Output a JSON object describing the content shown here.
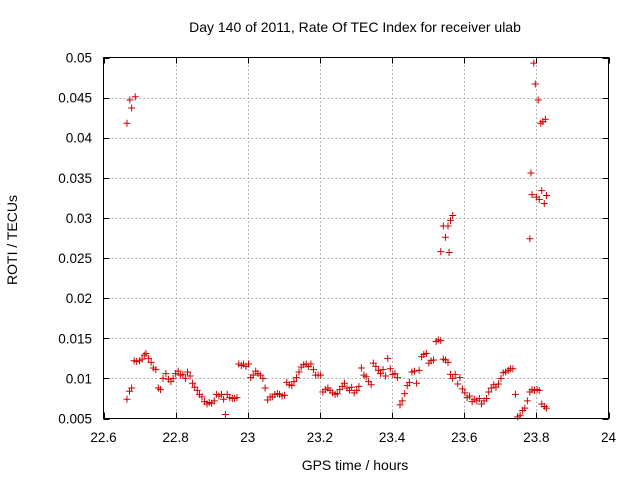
{
  "chart_data": {
    "type": "scatter",
    "title": "Day 140 of 2011, Rate Of TEC Index for receiver ulab",
    "xlabel": "GPS time / hours",
    "ylabel": "ROTI / TECUs",
    "xlim": [
      22.6,
      24.0
    ],
    "ylim": [
      0.005,
      0.05
    ],
    "grid": true,
    "marker": "+",
    "color": "#cc0000",
    "x_ticks": [
      22.6,
      22.8,
      23.0,
      23.2,
      23.4,
      23.6,
      23.8,
      24.0
    ],
    "x_tick_labels": [
      "22.6",
      "22.8",
      "23",
      "23.2",
      "23.4",
      "23.6",
      "23.8",
      "24"
    ],
    "y_ticks": [
      0.005,
      0.01,
      0.015,
      0.02,
      0.025,
      0.03,
      0.035,
      0.04,
      0.045,
      0.05
    ],
    "y_tick_labels": [
      "0.005",
      "0.01",
      "0.015",
      "0.02",
      "0.025",
      "0.03",
      "0.035",
      "0.04",
      "0.045",
      "0.05"
    ],
    "points": [
      [
        22.665,
        0.0418
      ],
      [
        22.673,
        0.0447
      ],
      [
        22.678,
        0.0437
      ],
      [
        22.688,
        0.0451
      ],
      [
        22.665,
        0.0074
      ],
      [
        22.672,
        0.0084
      ],
      [
        22.678,
        0.0088
      ],
      [
        22.685,
        0.0122
      ],
      [
        22.692,
        0.0121
      ],
      [
        22.7,
        0.0122
      ],
      [
        22.707,
        0.0124
      ],
      [
        22.713,
        0.0129
      ],
      [
        22.718,
        0.0131
      ],
      [
        22.725,
        0.0125
      ],
      [
        22.732,
        0.012
      ],
      [
        22.738,
        0.0113
      ],
      [
        22.745,
        0.0111
      ],
      [
        22.752,
        0.0088
      ],
      [
        22.758,
        0.0086
      ],
      [
        22.765,
        0.01
      ],
      [
        22.773,
        0.0106
      ],
      [
        22.78,
        0.0099
      ],
      [
        22.787,
        0.0096
      ],
      [
        22.793,
        0.01
      ],
      [
        22.8,
        0.0106
      ],
      [
        22.807,
        0.0109
      ],
      [
        22.813,
        0.0104
      ],
      [
        22.82,
        0.0105
      ],
      [
        22.827,
        0.01
      ],
      [
        22.833,
        0.0108
      ],
      [
        22.84,
        0.0103
      ],
      [
        22.847,
        0.0094
      ],
      [
        22.853,
        0.0089
      ],
      [
        22.86,
        0.0085
      ],
      [
        22.866,
        0.008
      ],
      [
        22.873,
        0.0077
      ],
      [
        22.88,
        0.0071
      ],
      [
        22.887,
        0.0068
      ],
      [
        22.893,
        0.007
      ],
      [
        22.9,
        0.0069
      ],
      [
        22.907,
        0.0072
      ],
      [
        22.913,
        0.008
      ],
      [
        22.92,
        0.0078
      ],
      [
        22.927,
        0.008
      ],
      [
        22.933,
        0.0074
      ],
      [
        22.938,
        0.0055
      ],
      [
        22.943,
        0.008
      ],
      [
        22.95,
        0.0076
      ],
      [
        22.957,
        0.0075
      ],
      [
        22.963,
        0.0075
      ],
      [
        22.97,
        0.0076
      ],
      [
        22.975,
        0.0118
      ],
      [
        22.982,
        0.0116
      ],
      [
        22.988,
        0.0118
      ],
      [
        22.995,
        0.0115
      ],
      [
        23.002,
        0.0118
      ],
      [
        23.008,
        0.0101
      ],
      [
        23.015,
        0.0104
      ],
      [
        23.022,
        0.0109
      ],
      [
        23.028,
        0.0106
      ],
      [
        23.035,
        0.0104
      ],
      [
        23.042,
        0.01
      ],
      [
        23.048,
        0.0088
      ],
      [
        23.055,
        0.0073
      ],
      [
        23.062,
        0.0077
      ],
      [
        23.068,
        0.0077
      ],
      [
        23.075,
        0.008
      ],
      [
        23.082,
        0.0081
      ],
      [
        23.088,
        0.008
      ],
      [
        23.095,
        0.0078
      ],
      [
        23.102,
        0.0079
      ],
      [
        23.108,
        0.0095
      ],
      [
        23.115,
        0.0092
      ],
      [
        23.122,
        0.0091
      ],
      [
        23.128,
        0.0096
      ],
      [
        23.135,
        0.0101
      ],
      [
        23.142,
        0.0108
      ],
      [
        23.148,
        0.0114
      ],
      [
        23.155,
        0.0117
      ],
      [
        23.162,
        0.0118
      ],
      [
        23.168,
        0.0115
      ],
      [
        23.175,
        0.0118
      ],
      [
        23.182,
        0.0111
      ],
      [
        23.188,
        0.0104
      ],
      [
        23.195,
        0.0104
      ],
      [
        23.202,
        0.0104
      ],
      [
        23.208,
        0.0083
      ],
      [
        23.215,
        0.0086
      ],
      [
        23.222,
        0.0088
      ],
      [
        23.228,
        0.0085
      ],
      [
        23.235,
        0.0082
      ],
      [
        23.242,
        0.008
      ],
      [
        23.248,
        0.0081
      ],
      [
        23.255,
        0.0086
      ],
      [
        23.262,
        0.009
      ],
      [
        23.268,
        0.0094
      ],
      [
        23.275,
        0.0088
      ],
      [
        23.282,
        0.0085
      ],
      [
        23.288,
        0.0089
      ],
      [
        23.295,
        0.0082
      ],
      [
        23.302,
        0.0085
      ],
      [
        23.308,
        0.009
      ],
      [
        23.315,
        0.0113
      ],
      [
        23.322,
        0.0104
      ],
      [
        23.328,
        0.0102
      ],
      [
        23.335,
        0.0096
      ],
      [
        23.342,
        0.0092
      ],
      [
        23.348,
        0.0119
      ],
      [
        23.355,
        0.0115
      ],
      [
        23.362,
        0.011
      ],
      [
        23.368,
        0.0106
      ],
      [
        23.375,
        0.0111
      ],
      [
        23.382,
        0.0103
      ],
      [
        23.388,
        0.0125
      ],
      [
        23.395,
        0.0112
      ],
      [
        23.402,
        0.0105
      ],
      [
        23.408,
        0.0106
      ],
      [
        23.415,
        0.0101
      ],
      [
        23.422,
        0.0067
      ],
      [
        23.428,
        0.0072
      ],
      [
        23.435,
        0.0081
      ],
      [
        23.442,
        0.0091
      ],
      [
        23.448,
        0.0095
      ],
      [
        23.455,
        0.0108
      ],
      [
        23.462,
        0.0109
      ],
      [
        23.468,
        0.0094
      ],
      [
        23.475,
        0.011
      ],
      [
        23.482,
        0.0127
      ],
      [
        23.488,
        0.013
      ],
      [
        23.495,
        0.0131
      ],
      [
        23.502,
        0.0119
      ],
      [
        23.508,
        0.0122
      ],
      [
        23.515,
        0.0123
      ],
      [
        23.522,
        0.0146
      ],
      [
        23.528,
        0.0148
      ],
      [
        23.535,
        0.0147
      ],
      [
        23.542,
        0.0124
      ],
      [
        23.548,
        0.0123
      ],
      [
        23.555,
        0.012
      ],
      [
        23.562,
        0.0105
      ],
      [
        23.568,
        0.01
      ],
      [
        23.575,
        0.0105
      ],
      [
        23.582,
        0.0093
      ],
      [
        23.588,
        0.0101
      ],
      [
        23.595,
        0.0087
      ],
      [
        23.602,
        0.0082
      ],
      [
        23.608,
        0.0076
      ],
      [
        23.615,
        0.0078
      ],
      [
        23.622,
        0.0071
      ],
      [
        23.628,
        0.0074
      ],
      [
        23.635,
        0.0072
      ],
      [
        23.642,
        0.0075
      ],
      [
        23.648,
        0.0068
      ],
      [
        23.655,
        0.0072
      ],
      [
        23.662,
        0.0075
      ],
      [
        23.668,
        0.0083
      ],
      [
        23.675,
        0.0088
      ],
      [
        23.682,
        0.0092
      ],
      [
        23.688,
        0.0089
      ],
      [
        23.695,
        0.0093
      ],
      [
        23.702,
        0.01
      ],
      [
        23.708,
        0.0107
      ],
      [
        23.715,
        0.0108
      ],
      [
        23.722,
        0.011
      ],
      [
        23.728,
        0.0112
      ],
      [
        23.735,
        0.0112
      ],
      [
        23.535,
        0.0258
      ],
      [
        23.542,
        0.029
      ],
      [
        23.548,
        0.0276
      ],
      [
        23.555,
        0.029
      ],
      [
        23.558,
        0.0257
      ],
      [
        23.562,
        0.0297
      ],
      [
        23.568,
        0.0303
      ],
      [
        23.742,
        0.008
      ],
      [
        23.748,
        0.0052
      ],
      [
        23.755,
        0.0054
      ],
      [
        23.762,
        0.006
      ],
      [
        23.768,
        0.0063
      ],
      [
        23.775,
        0.0072
      ],
      [
        23.782,
        0.0083
      ],
      [
        23.788,
        0.0086
      ],
      [
        23.795,
        0.0085
      ],
      [
        23.802,
        0.0086
      ],
      [
        23.808,
        0.0085
      ],
      [
        23.815,
        0.0068
      ],
      [
        23.822,
        0.0065
      ],
      [
        23.828,
        0.0063
      ],
      [
        23.782,
        0.0274
      ],
      [
        23.785,
        0.0356
      ],
      [
        23.788,
        0.0329
      ],
      [
        23.793,
        0.0493
      ],
      [
        23.797,
        0.0467
      ],
      [
        23.8,
        0.0326
      ],
      [
        23.805,
        0.0447
      ],
      [
        23.808,
        0.0323
      ],
      [
        23.812,
        0.0418
      ],
      [
        23.815,
        0.0334
      ],
      [
        23.818,
        0.042
      ],
      [
        23.822,
        0.0318
      ],
      [
        23.825,
        0.0423
      ],
      [
        23.828,
        0.0328
      ]
    ]
  }
}
